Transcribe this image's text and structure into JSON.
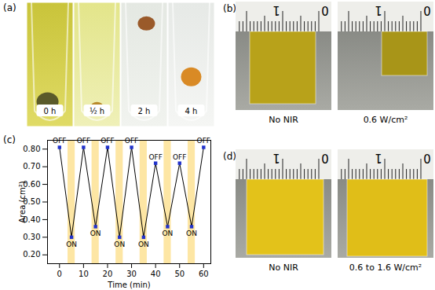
{
  "panels": {
    "a": {
      "label": "(a)",
      "photos": [
        {
          "caption": "0 h"
        },
        {
          "caption": "½ h"
        },
        {
          "caption": "2 h"
        },
        {
          "caption": "4 h"
        }
      ]
    },
    "b": {
      "label": "(b)",
      "ruler_labels": [
        "1",
        "0"
      ],
      "photos": [
        {
          "caption": "No NIR"
        },
        {
          "caption": "0.6 W/cm²"
        }
      ]
    },
    "d": {
      "label": "(d)",
      "ruler_labels": [
        "1",
        "0"
      ],
      "photos": [
        {
          "caption": "No NIR"
        },
        {
          "caption": "0.6 to 1.6 W/cm²"
        }
      ]
    }
  },
  "chart_data": {
    "panel_label": "(c)",
    "type": "line",
    "x": [
      0,
      5,
      10,
      15,
      20,
      25,
      30,
      35,
      40,
      45,
      50,
      55,
      60
    ],
    "values": [
      0.81,
      0.3,
      0.81,
      0.36,
      0.81,
      0.3,
      0.81,
      0.3,
      0.72,
      0.36,
      0.72,
      0.36,
      0.81
    ],
    "point_labels": [
      "OFF",
      "ON",
      "OFF",
      "ON",
      "OFF",
      "ON",
      "OFF",
      "ON",
      "OFF",
      "ON",
      "OFF",
      "ON",
      "OFF"
    ],
    "on_periods": [
      [
        3.5,
        6.5
      ],
      [
        13.5,
        16.5
      ],
      [
        23.5,
        26.5
      ],
      [
        33.5,
        36.5
      ],
      [
        43.5,
        46.5
      ],
      [
        53.5,
        56.5
      ]
    ],
    "xlabel": "Time (min)",
    "ylabel": "Area (cm²)",
    "xlim": [
      -5,
      63
    ],
    "ylim": [
      0.15,
      0.85
    ],
    "xticks": [
      0,
      10,
      20,
      30,
      40,
      50,
      60
    ],
    "yticks": [
      0.2,
      0.3,
      0.4,
      0.5,
      0.6,
      0.7,
      0.8
    ],
    "color": "#2233cc",
    "marker": "square"
  }
}
